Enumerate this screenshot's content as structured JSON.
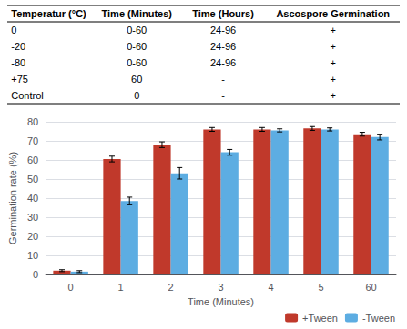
{
  "chart_data": {
    "type": "bar",
    "table": {
      "headers": [
        "Temperatur (°C)",
        "Time (Minutes)",
        "Time (Hours)",
        "Ascospore Germination"
      ],
      "rows": [
        [
          "0",
          "0-60",
          "24-96",
          "+"
        ],
        [
          "-20",
          "0-60",
          "24-96",
          "+"
        ],
        [
          "-80",
          "0-60",
          "24-96",
          "+"
        ],
        [
          "+75",
          "60",
          "-",
          "+"
        ],
        [
          "Control",
          "0",
          "-",
          "+"
        ]
      ]
    },
    "categories": [
      "0",
      "1",
      "2",
      "3",
      "4",
      "5",
      "60"
    ],
    "series": [
      {
        "name": "+Tween",
        "color": "#c0392b",
        "values": [
          2.0,
          60.5,
          68.0,
          76.0,
          76.0,
          76.5,
          73.5
        ],
        "errors": [
          0.5,
          1.5,
          1.5,
          1.0,
          1.0,
          1.0,
          1.0
        ]
      },
      {
        "name": "-Tween",
        "color": "#5dade2",
        "values": [
          1.5,
          38.5,
          53.0,
          64.0,
          75.5,
          76.0,
          72.0
        ],
        "errors": [
          0.5,
          2.0,
          3.0,
          1.5,
          0.8,
          0.8,
          1.5
        ]
      }
    ],
    "xlabel": "Time (Minutes)",
    "ylabel": "Germination rate (%)",
    "ylim": [
      0,
      80
    ],
    "yticks": [
      0,
      10,
      20,
      30,
      40,
      50,
      60,
      70,
      80
    ],
    "grid": true,
    "legend": "lower right"
  }
}
